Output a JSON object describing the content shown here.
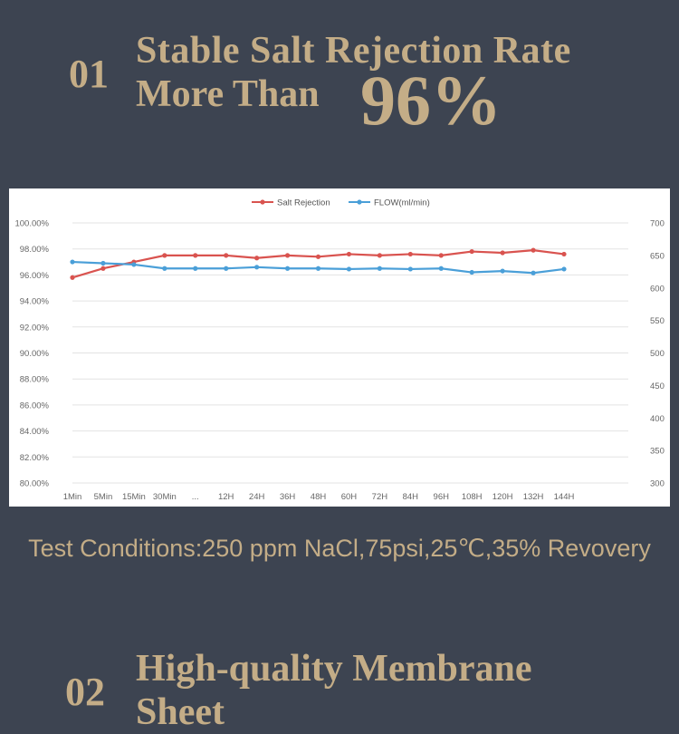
{
  "section1": {
    "number": "01",
    "title_line1": "Stable Salt Rejection Rate",
    "title_line2": "More Than",
    "highlight": "96%"
  },
  "chart_data": {
    "type": "line",
    "categories": [
      "1Min",
      "5Min",
      "15Min",
      "30Min",
      "...",
      "12H",
      "24H",
      "36H",
      "48H",
      "60H",
      "72H",
      "84H",
      "96H",
      "108H",
      "120H",
      "132H",
      "144H"
    ],
    "series": [
      {
        "name": "Salt   Rejection",
        "axis": "left",
        "color": "#d9534f",
        "values": [
          95.8,
          96.5,
          97.0,
          97.5,
          97.5,
          97.5,
          97.3,
          97.5,
          97.4,
          97.6,
          97.5,
          97.6,
          97.5,
          97.8,
          97.7,
          97.9,
          97.6
        ]
      },
      {
        "name": "FLOW(ml/min)",
        "axis": "right",
        "color": "#4a9fd8",
        "values": [
          640,
          638,
          636,
          630,
          630,
          630,
          632,
          630,
          630,
          629,
          630,
          629,
          630,
          624,
          626,
          623,
          629
        ]
      }
    ],
    "y_left": {
      "min": 80,
      "max": 100,
      "ticks": [
        "80.00%",
        "82.00%",
        "84.00%",
        "86.00%",
        "88.00%",
        "90.00%",
        "92.00%",
        "94.00%",
        "96.00%",
        "98.00%",
        "100.00%"
      ]
    },
    "y_right": {
      "min": 300,
      "max": 700,
      "ticks": [
        "300",
        "350",
        "400",
        "450",
        "500",
        "550",
        "600",
        "650",
        "700"
      ]
    },
    "legend_position": "top-center",
    "grid": true
  },
  "conditions": "Test Conditions:250 ppm NaCl,75psi,25℃,35% Revovery",
  "section2": {
    "number": "02",
    "title_line1": "High-quality Membrane",
    "title_line2": "Sheet"
  }
}
